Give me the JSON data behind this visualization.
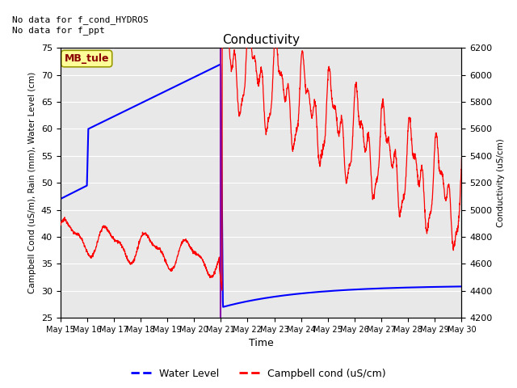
{
  "title": "Conductivity",
  "top_left_text": "No data for f_cond_HYDROS\nNo data for f_ppt",
  "ylabel_left": "Campbell Cond (uS/m), Rain (mm), Water Level (cm)",
  "ylabel_right": "Conductivity (uS/cm)",
  "xlabel": "Time",
  "ylim_left": [
    25,
    75
  ],
  "ylim_right": [
    4200,
    6200
  ],
  "yticks_left": [
    25,
    30,
    35,
    40,
    45,
    50,
    55,
    60,
    65,
    70,
    75
  ],
  "yticks_right": [
    4200,
    4400,
    4600,
    4800,
    5000,
    5200,
    5400,
    5600,
    5800,
    6000,
    6200
  ],
  "xtick_labels": [
    "May 15",
    "May 16",
    "May 17",
    "May 18",
    "May 19",
    "May 20",
    "May 21",
    "May 22",
    "May 23",
    "May 24",
    "May 25",
    "May 26",
    "May 27",
    "May 28",
    "May 29",
    "May 30"
  ],
  "background_color": "#e8e8e8",
  "water_level_color": "#0000ff",
  "campbell_cond_color": "#ff0000",
  "vline_color": "#8800aa",
  "legend_label_water": "Water Level",
  "legend_label_campbell": "Campbell cond (uS/cm)",
  "annotation_box_text": "MB_tule",
  "annotation_box_color": "#ffff99",
  "annotation_box_text_color": "#8b0000",
  "fig_width": 6.4,
  "fig_height": 4.8,
  "dpi": 100
}
